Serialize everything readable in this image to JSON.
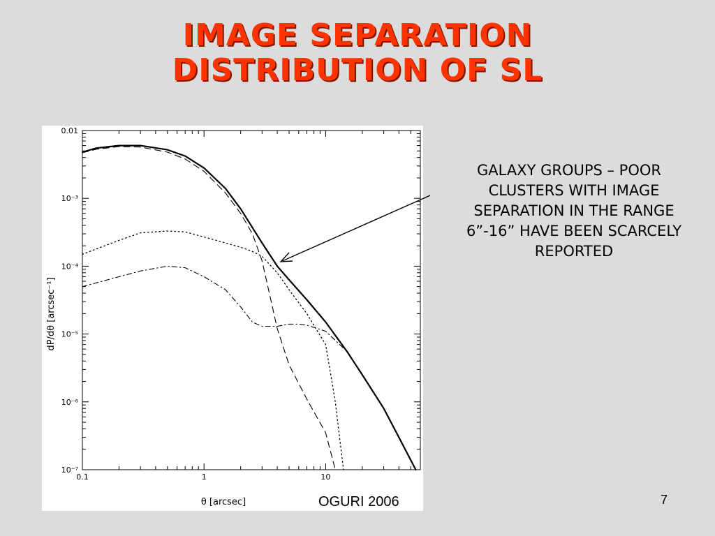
{
  "slide": {
    "title_line1": "IMAGE SEPARATION",
    "title_line2": "DISTRIBUTION OF SL",
    "annotation": "GALAXY GROUPS – POOR CLUSTERS WITH IMAGE SEPARATION IN THE RANGE 6”-16” HAVE BEEN SCARCELY REPORTED",
    "credit": "OGURI 2006",
    "page_number": "7",
    "title_color": "#ff3300",
    "background_color": "#dcdcdc"
  },
  "chart_data": {
    "type": "line",
    "xlabel": "θ [arcsec]",
    "ylabel": "dP/dθ [arcsec⁻¹]",
    "xscale": "log",
    "yscale": "log",
    "xlim": [
      0.1,
      60
    ],
    "ylim": [
      1e-07,
      0.01
    ],
    "x_tick_labels": [
      "0.1",
      "1",
      "10"
    ],
    "x_tick_values": [
      0.1,
      1,
      10
    ],
    "y_tick_labels": [
      "10⁻⁷",
      "10⁻⁶",
      "10⁻⁵",
      "10⁻⁴",
      "10⁻³",
      "0.01"
    ],
    "y_tick_values": [
      1e-07,
      1e-06,
      1e-05,
      0.0001,
      0.001,
      0.01
    ],
    "series": [
      {
        "style": "solid",
        "x": [
          0.1,
          0.13,
          0.2,
          0.3,
          0.5,
          0.7,
          1,
          1.5,
          2,
          3,
          4,
          5,
          7,
          10,
          15,
          20,
          30,
          40,
          55
        ],
        "y": [
          0.0048,
          0.0055,
          0.006,
          0.006,
          0.0052,
          0.0042,
          0.0028,
          0.0014,
          0.0007,
          0.00022,
          0.0001,
          6.3e-05,
          3.2e-05,
          1.5e-05,
          5.5e-06,
          2.5e-06,
          8e-07,
          3e-07,
          1e-07
        ]
      },
      {
        "style": "dashed",
        "x": [
          0.1,
          0.13,
          0.2,
          0.3,
          0.5,
          0.7,
          1,
          1.5,
          2,
          2.5,
          3,
          3.5,
          4,
          5,
          7,
          10,
          12
        ],
        "y": [
          0.0047,
          0.0053,
          0.0058,
          0.0057,
          0.0048,
          0.0038,
          0.0025,
          0.0012,
          0.0006,
          0.0003,
          0.00012,
          3.5e-05,
          1.2e-05,
          3.5e-06,
          1.1e-06,
          3.5e-07,
          1e-07
        ]
      },
      {
        "style": "dotted",
        "x": [
          0.1,
          0.2,
          0.3,
          0.5,
          0.7,
          1,
          1.5,
          2,
          2.5,
          3,
          4,
          5,
          7,
          10,
          12,
          14
        ],
        "y": [
          0.00015,
          0.00024,
          0.00031,
          0.00033,
          0.00032,
          0.00027,
          0.00022,
          0.00019,
          0.000165,
          0.00014,
          8e-05,
          4.5e-05,
          2e-05,
          7e-06,
          1e-06,
          1e-07
        ]
      },
      {
        "style": "dashdot",
        "x": [
          0.1,
          0.2,
          0.3,
          0.5,
          0.7,
          1,
          1.5,
          2,
          2.5,
          3,
          4,
          5,
          6,
          7,
          10,
          15,
          20,
          30,
          40,
          55
        ],
        "y": [
          5e-05,
          7e-05,
          8.5e-05,
          0.0001,
          9.5e-05,
          7e-05,
          4.5e-05,
          2.5e-05,
          1.5e-05,
          1.3e-05,
          1.3e-05,
          1.4e-05,
          1.4e-05,
          1.35e-05,
          1.1e-05,
          5.5e-06,
          2.5e-06,
          8e-07,
          3e-07,
          1e-07
        ]
      }
    ]
  }
}
